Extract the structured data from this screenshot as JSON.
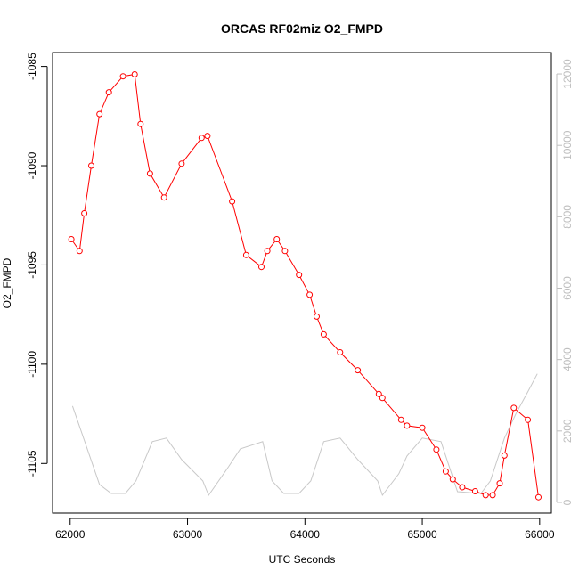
{
  "chart_data": {
    "type": "line",
    "title": "ORCAS RF02miz O2_FMPD",
    "xlabel": "UTC Seconds",
    "ylabel": "O2_FMPD",
    "xlim": [
      61850,
      66100
    ],
    "ylim": [
      -1107.5,
      -1084.3
    ],
    "y2lim": [
      -300,
      12600
    ],
    "x_ticks": [
      62000,
      63000,
      64000,
      65000,
      66000
    ],
    "y_ticks": [
      -1105,
      -1100,
      -1095,
      -1090,
      -1085
    ],
    "y2_ticks": [
      0,
      2000,
      4000,
      6000,
      8000,
      10000,
      12000
    ],
    "colors": {
      "primary": "#ff0000",
      "secondary": "#c8c8c8",
      "axis": "#000000",
      "secondary_axis": "#bebebe"
    },
    "series": [
      {
        "axis": "left",
        "style": "line+points",
        "x": [
          62010,
          62080,
          62120,
          62180,
          62250,
          62330,
          62450,
          62550,
          62600,
          62680,
          62800,
          62950,
          63120,
          63170,
          63380,
          63500,
          63630,
          63680,
          63760,
          63830,
          63950,
          64040,
          64100,
          64160,
          64300,
          64450,
          64630,
          64660,
          64820,
          64870,
          65000,
          65120,
          65200,
          65260,
          65340,
          65450,
          65540,
          65600,
          65660,
          65700,
          65780,
          65900,
          65990
        ],
        "y": [
          -1093.7,
          -1094.3,
          -1092.4,
          -1090.0,
          -1087.4,
          -1086.3,
          -1085.5,
          -1085.4,
          -1087.9,
          -1090.4,
          -1091.6,
          -1089.9,
          -1088.6,
          -1088.5,
          -1091.8,
          -1094.5,
          -1095.1,
          -1094.3,
          -1093.7,
          -1094.3,
          -1095.5,
          -1096.5,
          -1097.6,
          -1098.5,
          -1099.4,
          -1100.3,
          -1101.5,
          -1101.7,
          -1102.8,
          -1103.1,
          -1103.2,
          -1104.3,
          -1105.4,
          -1105.8,
          -1106.2,
          -1106.4,
          -1106.6,
          -1106.6,
          -1106.0,
          -1104.6,
          -1102.2,
          -1102.8,
          -1106.7
        ]
      },
      {
        "axis": "right",
        "style": "line",
        "x": [
          62020,
          62250,
          62350,
          62470,
          62560,
          62700,
          62820,
          62950,
          63130,
          63180,
          63350,
          63450,
          63640,
          63720,
          63820,
          63950,
          64050,
          64160,
          64300,
          64450,
          64620,
          64660,
          64800,
          64870,
          65000,
          65160,
          65300,
          65500,
          65580,
          65700,
          65800,
          65900,
          65980
        ],
        "y": [
          2700,
          500,
          250,
          250,
          600,
          1700,
          1800,
          1200,
          600,
          200,
          1000,
          1500,
          1700,
          600,
          250,
          250,
          600,
          1700,
          1800,
          1200,
          600,
          200,
          800,
          1300,
          1800,
          1700,
          300,
          250,
          600,
          1800,
          2500,
          3100,
          3600
        ]
      }
    ]
  }
}
